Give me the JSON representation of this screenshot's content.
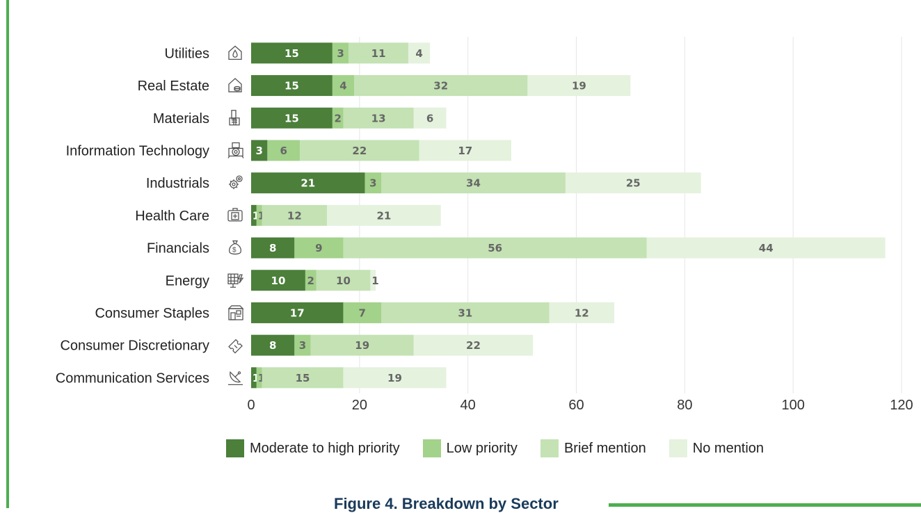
{
  "chart_data": {
    "type": "bar",
    "orientation": "horizontal",
    "stacked": true,
    "categories": [
      "Utilities",
      "Real Estate",
      "Materials",
      "Information Technology",
      "Industrials",
      "Health Care",
      "Financials",
      "Energy",
      "Consumer Staples",
      "Consumer Discretionary",
      "Communication Services"
    ],
    "series": [
      {
        "name": "Moderate to high priority",
        "color": "#4b7f3a",
        "label_color": "#ffffff",
        "values": [
          15,
          15,
          15,
          3,
          21,
          1,
          8,
          10,
          17,
          8,
          1
        ]
      },
      {
        "name": "Low priority",
        "color": "#a3d28b",
        "label_color": "#666666",
        "values": [
          3,
          4,
          2,
          6,
          3,
          1,
          9,
          2,
          7,
          3,
          1
        ]
      },
      {
        "name": "Brief mention",
        "color": "#c4e2b4",
        "label_color": "#666666",
        "values": [
          11,
          32,
          13,
          22,
          34,
          12,
          56,
          10,
          31,
          19,
          15
        ]
      },
      {
        "name": "No mention",
        "color": "#e5f2de",
        "label_color": "#666666",
        "values": [
          4,
          19,
          6,
          17,
          25,
          21,
          44,
          1,
          12,
          22,
          19
        ]
      }
    ],
    "xlim": [
      0,
      120
    ],
    "xticks": [
      0,
      20,
      40,
      60,
      80,
      100,
      120
    ],
    "grid": true,
    "legend_position": "bottom",
    "category_icons": [
      "house-water-icon",
      "house-coins-icon",
      "building-icon",
      "robot-icon",
      "gears-icon",
      "medical-kit-icon",
      "money-bag-icon",
      "solar-panel-icon",
      "store-icon",
      "ticket-icon",
      "satellite-dish-icon"
    ],
    "title": "Figure 4. Breakdown by Sector"
  },
  "legend": {
    "items": [
      {
        "label": "Moderate to high priority",
        "color": "#4b7f3a"
      },
      {
        "label": "Low priority",
        "color": "#a3d28b"
      },
      {
        "label": "Brief mention",
        "color": "#c4e2b4"
      },
      {
        "label": "No mention",
        "color": "#e5f2de"
      }
    ]
  },
  "accent_color": "#4caf50"
}
